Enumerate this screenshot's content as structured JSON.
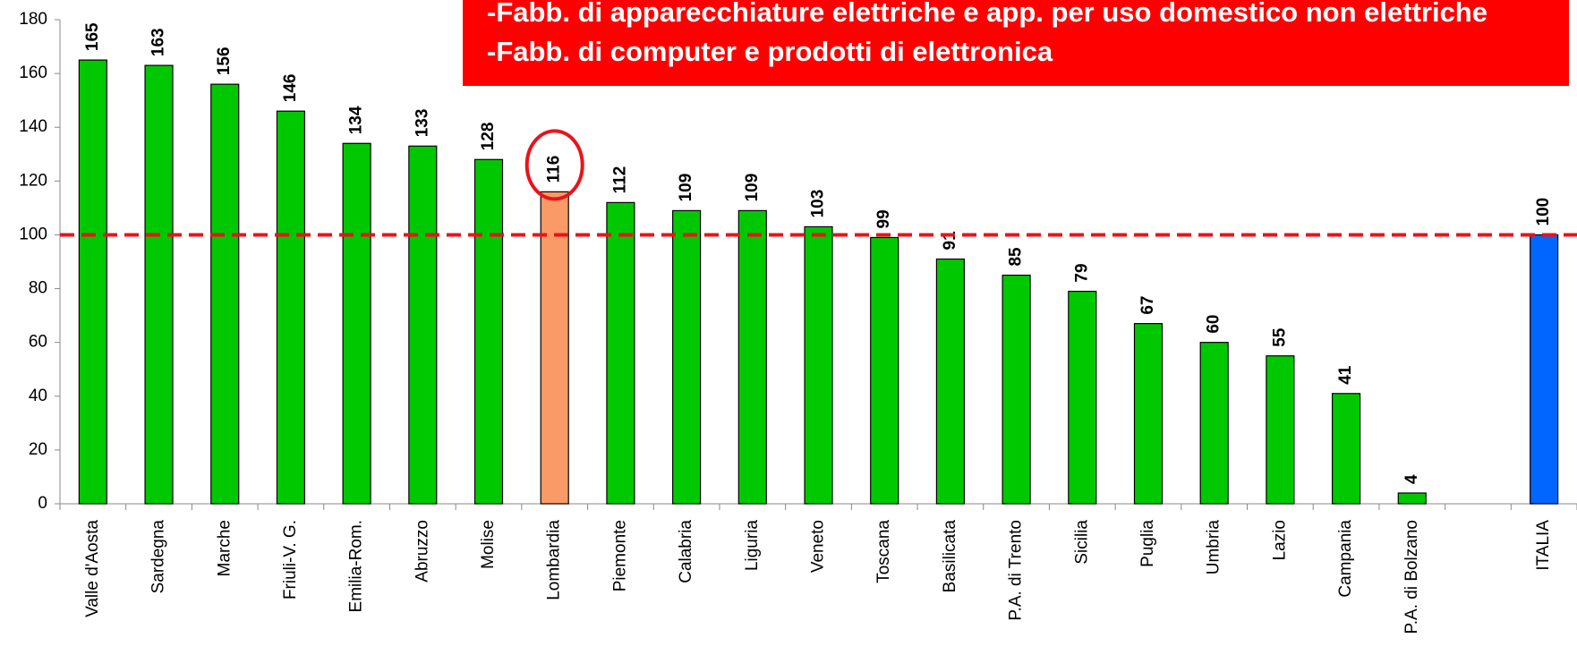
{
  "chart_data": {
    "type": "bar",
    "annotations": [
      "-Fabb. di apparecchiature elettriche e app. per uso domestico non elettriche",
      "-Fabb. di computer e prodotti di elettronica"
    ],
    "categories": [
      "Valle d'Aosta",
      "Sardegna",
      "Marche",
      "Friuli-V. G.",
      "Emilia-Rom.",
      "Abruzzo",
      "Molise",
      "Lombardia",
      "Piemonte",
      "Calabria",
      "Liguria",
      "Veneto",
      "Toscana",
      "Basilicata",
      "P.A. di Trento",
      "Sicilia",
      "Puglia",
      "Umbria",
      "Lazio",
      "Campania",
      "P.A. di Bolzano",
      null,
      "ITALIA"
    ],
    "values": [
      165,
      163,
      156,
      146,
      134,
      133,
      128,
      116,
      112,
      109,
      109,
      103,
      99,
      91,
      85,
      79,
      67,
      60,
      55,
      41,
      4,
      null,
      100
    ],
    "colors": [
      "#00c800",
      "#00c800",
      "#00c800",
      "#00c800",
      "#00c800",
      "#00c800",
      "#00c800",
      "#fa9a66",
      "#00c800",
      "#00c800",
      "#00c800",
      "#00c800",
      "#00c800",
      "#00c800",
      "#00c800",
      "#00c800",
      "#00c800",
      "#00c800",
      "#00c800",
      "#00c800",
      "#00c800",
      null,
      "#0066ff"
    ],
    "highlight": "Lombardia",
    "reference_line": 100,
    "reference_color": "#e8141a",
    "ylim": [
      0,
      180
    ],
    "yticks": [
      0,
      20,
      40,
      60,
      80,
      100,
      120,
      140,
      160,
      180
    ]
  }
}
